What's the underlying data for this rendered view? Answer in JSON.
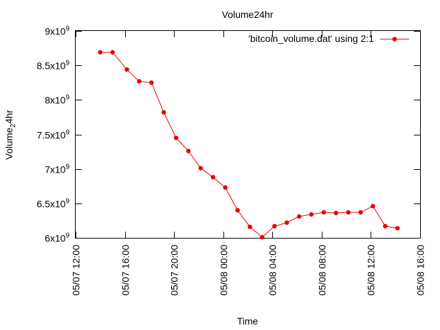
{
  "chart_data": {
    "type": "line",
    "title": "Volume24hr",
    "xlabel": "Time",
    "ylabel_main": "Volume",
    "ylabel_sub": "2",
    "ylabel_tail": "4hr",
    "legend": {
      "label": "'bitcoin_volume.dat' using 2:1",
      "placement": "top-right"
    },
    "xlim": [
      "05/07 12:00",
      "05/08 16:00"
    ],
    "ylim": [
      6000000000,
      9000000000
    ],
    "x_ticks": [
      "05/07 12:00",
      "05/07 16:00",
      "05/07 20:00",
      "05/08 00:00",
      "05/08 04:00",
      "05/08 08:00",
      "05/08 12:00",
      "05/08 16:00"
    ],
    "y_ticks": [
      {
        "value": 6000000000,
        "mantissa": "6",
        "base": "x10",
        "exp": "9"
      },
      {
        "value": 6500000000,
        "mantissa": "6.5",
        "base": "x10",
        "exp": "9"
      },
      {
        "value": 7000000000,
        "mantissa": "7",
        "base": "x10",
        "exp": "9"
      },
      {
        "value": 7500000000,
        "mantissa": "7.5",
        "base": "x10",
        "exp": "9"
      },
      {
        "value": 8000000000,
        "mantissa": "8",
        "base": "x10",
        "exp": "9"
      },
      {
        "value": 8500000000,
        "mantissa": "8.5",
        "base": "x10",
        "exp": "9"
      },
      {
        "value": 9000000000,
        "mantissa": "9",
        "base": "x10",
        "exp": "9"
      }
    ],
    "grid": false,
    "series": [
      {
        "name": "'bitcoin_volume.dat' using 2:1",
        "color": "#e60000",
        "marker": "star",
        "points": [
          {
            "x": "05/07 14:00",
            "y": 8690000000
          },
          {
            "x": "05/07 15:00",
            "y": 8690000000
          },
          {
            "x": "05/07 16:10",
            "y": 8440000000
          },
          {
            "x": "05/07 17:10",
            "y": 8270000000
          },
          {
            "x": "05/07 18:10",
            "y": 8250000000
          },
          {
            "x": "05/07 19:10",
            "y": 7820000000
          },
          {
            "x": "05/07 20:10",
            "y": 7450000000
          },
          {
            "x": "05/07 21:10",
            "y": 7260000000
          },
          {
            "x": "05/07 22:10",
            "y": 7010000000
          },
          {
            "x": "05/07 23:10",
            "y": 6880000000
          },
          {
            "x": "05/08 00:10",
            "y": 6730000000
          },
          {
            "x": "05/08 01:10",
            "y": 6400000000
          },
          {
            "x": "05/08 02:10",
            "y": 6160000000
          },
          {
            "x": "05/08 03:10",
            "y": 6010000000
          },
          {
            "x": "05/08 04:10",
            "y": 6170000000
          },
          {
            "x": "05/08 05:10",
            "y": 6220000000
          },
          {
            "x": "05/08 06:10",
            "y": 6310000000
          },
          {
            "x": "05/08 07:10",
            "y": 6340000000
          },
          {
            "x": "05/08 08:10",
            "y": 6370000000
          },
          {
            "x": "05/08 09:10",
            "y": 6360000000
          },
          {
            "x": "05/08 10:10",
            "y": 6370000000
          },
          {
            "x": "05/08 11:10",
            "y": 6370000000
          },
          {
            "x": "05/08 12:10",
            "y": 6460000000
          },
          {
            "x": "05/08 13:10",
            "y": 6170000000
          },
          {
            "x": "05/08 14:10",
            "y": 6140000000
          }
        ]
      }
    ]
  }
}
